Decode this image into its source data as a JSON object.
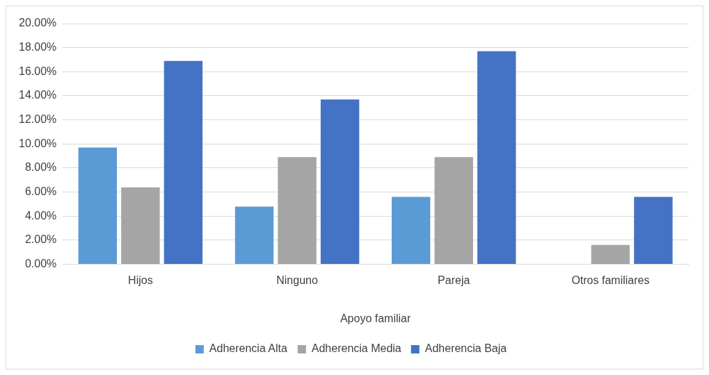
{
  "chart_data": {
    "type": "bar",
    "xlabel": "Apoyo familiar",
    "categories": [
      "Hijos",
      "Ninguno",
      "Pareja",
      "Otros familiares"
    ],
    "series": [
      {
        "name": "Adherencia Alta",
        "color": "#5b9bd5",
        "values": [
          9.7,
          4.8,
          5.6,
          0
        ]
      },
      {
        "name": "Adherencia Media",
        "color": "#a5a5a5",
        "values": [
          6.4,
          8.9,
          8.9,
          1.6
        ]
      },
      {
        "name": "Adherencia Baja",
        "color": "#4472c4",
        "values": [
          16.9,
          13.7,
          17.7,
          5.6
        ]
      }
    ],
    "ylim": [
      0,
      20
    ],
    "yticks": [
      {
        "value": 0,
        "label": "0.00%"
      },
      {
        "value": 2,
        "label": "2.00%"
      },
      {
        "value": 4,
        "label": "4.00%"
      },
      {
        "value": 6,
        "label": "6.00%"
      },
      {
        "value": 8,
        "label": "8.00%"
      },
      {
        "value": 10,
        "label": "10.00%"
      },
      {
        "value": 12,
        "label": "12.00%"
      },
      {
        "value": 14,
        "label": "14.00%"
      },
      {
        "value": 16,
        "label": "16.00%"
      },
      {
        "value": 18,
        "label": "18.00%"
      },
      {
        "value": 20,
        "label": "20.00%"
      }
    ],
    "grid": "y",
    "legend": "bottom"
  }
}
